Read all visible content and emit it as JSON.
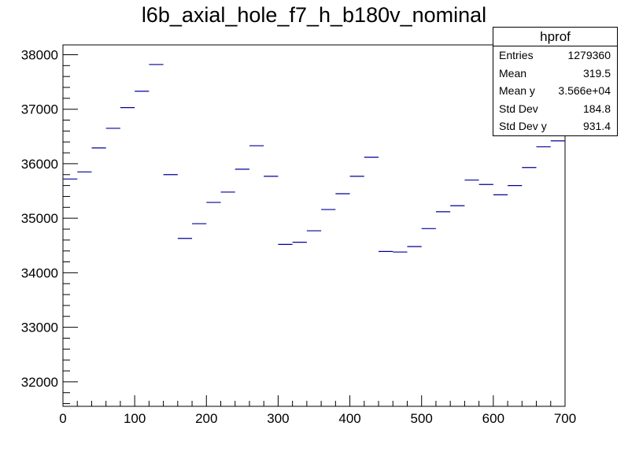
{
  "chart_data": {
    "type": "scatter",
    "title": "l6b_axial_hole_f7_h_b180v_nominal",
    "xlabel": "",
    "ylabel": "",
    "xlim": [
      0,
      700
    ],
    "ylim": [
      31550,
      38180
    ],
    "x_ticks": [
      0,
      100,
      200,
      300,
      400,
      500,
      600,
      700
    ],
    "y_ticks": [
      32000,
      33000,
      34000,
      35000,
      36000,
      37000,
      38000
    ],
    "grid": false,
    "bin_width": 20,
    "series": [
      {
        "marker": "horizontal-bin-bar",
        "points": [
          {
            "x": 10,
            "y": 35720
          },
          {
            "x": 30,
            "y": 35850
          },
          {
            "x": 50,
            "y": 36290
          },
          {
            "x": 70,
            "y": 36650
          },
          {
            "x": 90,
            "y": 37030
          },
          {
            "x": 110,
            "y": 37330
          },
          {
            "x": 130,
            "y": 37820
          },
          {
            "x": 150,
            "y": 35800
          },
          {
            "x": 170,
            "y": 34630
          },
          {
            "x": 190,
            "y": 34900
          },
          {
            "x": 210,
            "y": 35290
          },
          {
            "x": 230,
            "y": 35480
          },
          {
            "x": 250,
            "y": 35900
          },
          {
            "x": 270,
            "y": 36330
          },
          {
            "x": 290,
            "y": 35770
          },
          {
            "x": 310,
            "y": 34520
          },
          {
            "x": 330,
            "y": 34560
          },
          {
            "x": 350,
            "y": 34770
          },
          {
            "x": 370,
            "y": 35160
          },
          {
            "x": 390,
            "y": 35450
          },
          {
            "x": 410,
            "y": 35770
          },
          {
            "x": 430,
            "y": 36120
          },
          {
            "x": 450,
            "y": 34390
          },
          {
            "x": 470,
            "y": 34380
          },
          {
            "x": 490,
            "y": 34480
          },
          {
            "x": 510,
            "y": 34810
          },
          {
            "x": 530,
            "y": 35120
          },
          {
            "x": 550,
            "y": 35230
          },
          {
            "x": 570,
            "y": 35700
          },
          {
            "x": 590,
            "y": 35620
          },
          {
            "x": 610,
            "y": 35430
          },
          {
            "x": 630,
            "y": 35600
          },
          {
            "x": 650,
            "y": 35930
          },
          {
            "x": 670,
            "y": 36310
          },
          {
            "x": 690,
            "y": 36420
          }
        ]
      }
    ]
  },
  "stats_box": {
    "title": "hprof",
    "rows": [
      {
        "label": "Entries",
        "value": "1279360"
      },
      {
        "label": "Mean",
        "value": "319.5"
      },
      {
        "label": "Mean y",
        "value": "3.566e+04"
      },
      {
        "label": "Std Dev",
        "value": "184.8"
      },
      {
        "label": "Std Dev y",
        "value": "931.4"
      }
    ]
  },
  "colors": {
    "marker": "#000099",
    "axis": "#000000",
    "background": "#ffffff"
  }
}
